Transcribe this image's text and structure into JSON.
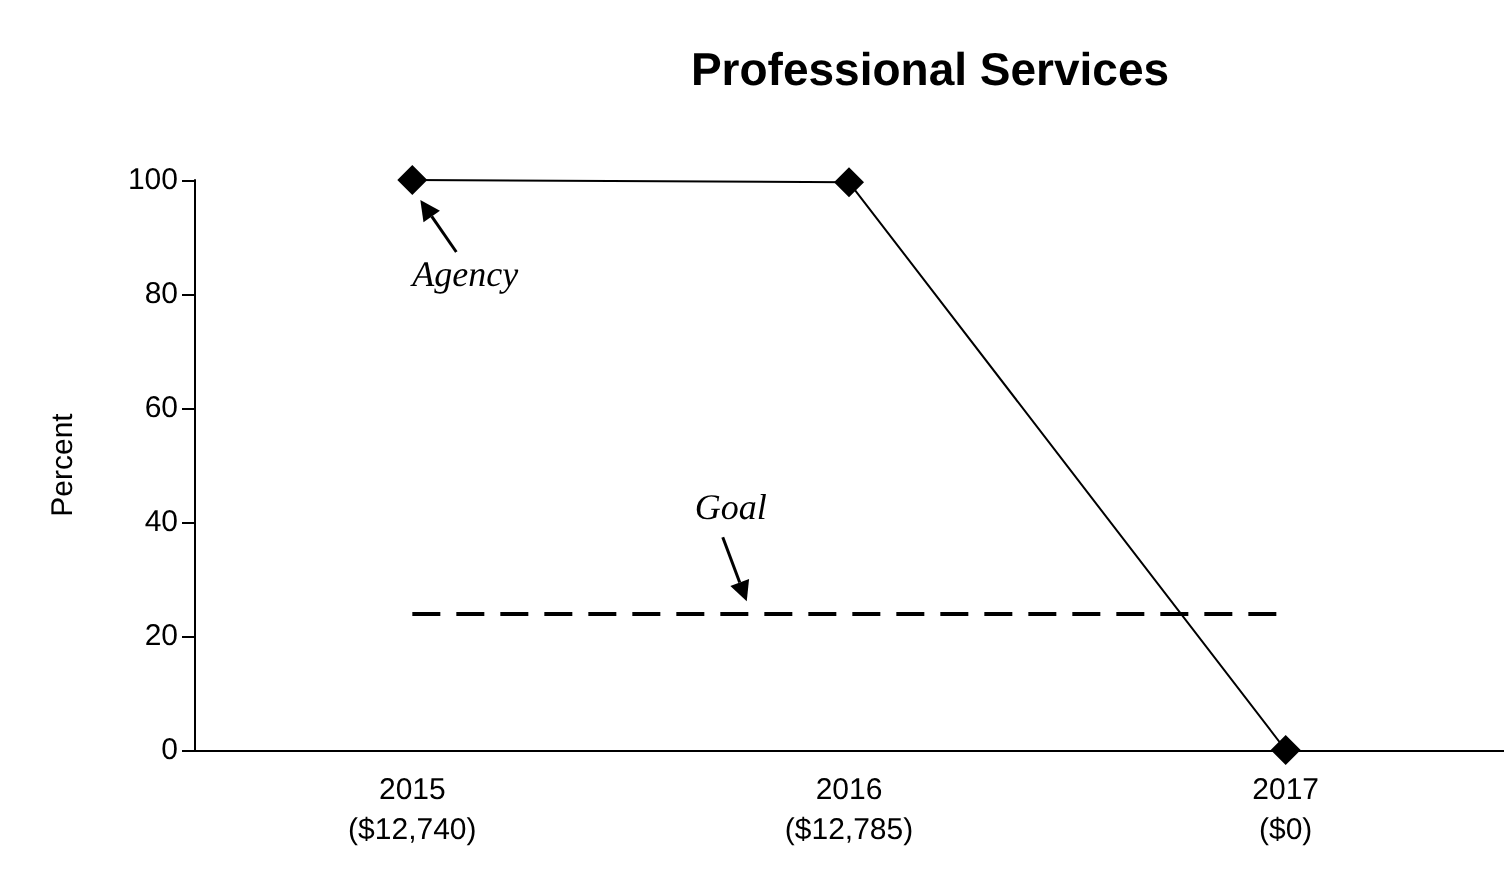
{
  "chart_data": {
    "type": "line",
    "title": "Professional Services",
    "ylabel": "Percent",
    "categories": [
      "2015\n($12,740)",
      "2016\n($12,785)",
      "2017\n($0)"
    ],
    "series": [
      {
        "color": "#000000",
        "values": [
          100,
          99.6,
          0
        ]
      }
    ],
    "annotations": [
      {
        "text": "Agency",
        "x": "2015\n($12,740)",
        "y": 100
      }
    ],
    "ylim": [
      0,
      100
    ],
    "yticks": [
      0,
      20,
      40,
      60,
      80,
      100
    ],
    "grid": false,
    "marker": "diamond",
    "line_style": "solid",
    "ref_lines": [
      {
        "axis": "y",
        "value": 24,
        "label": "Goal",
        "color": "#000000",
        "line_style": "dashed"
      }
    ]
  }
}
